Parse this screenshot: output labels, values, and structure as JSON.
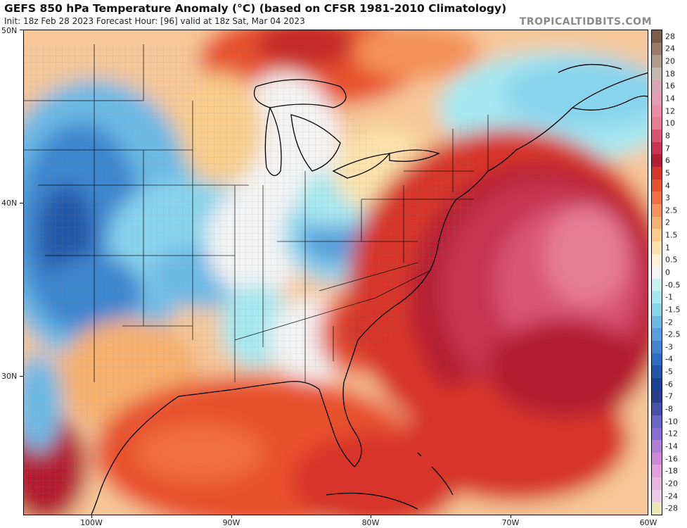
{
  "header": {
    "title": "GEFS 850 hPa Temperature Anomaly (°C) (based on CFSR 1981-2010 Climatology)",
    "subtitle": "Init: 18z Feb 28 2023   Forecast Hour: [96]   valid at 18z Sat, Mar 04 2023",
    "brand": "TROPICALTIDBITS.COM"
  },
  "axes": {
    "lat_labels": [
      "50N",
      "40N",
      "30N"
    ],
    "lon_labels": [
      "100W",
      "90W",
      "80W",
      "70W",
      "60W"
    ]
  },
  "colorbar": {
    "labels": [
      "28",
      "24",
      "20",
      "18",
      "16",
      "14",
      "12",
      "10",
      "8",
      "7",
      "6",
      "5",
      "4",
      "3",
      "2.5",
      "2",
      "1.5",
      "1",
      "0.5",
      "0",
      "-0.5",
      "-1",
      "-1.5",
      "-2",
      "-2.5",
      "-3",
      "-4",
      "-5",
      "-6",
      "-7",
      "-8",
      "-10",
      "-12",
      "-14",
      "-16",
      "-18",
      "-20",
      "-24",
      "-28"
    ],
    "colors": [
      "#7b5c4a",
      "#9a7b6a",
      "#b09a8c",
      "#c4b8b0",
      "#d6a6b4",
      "#e49cb2",
      "#ec8da8",
      "#e67d96",
      "#d95474",
      "#c53450",
      "#b31f32",
      "#d7362a",
      "#e8512e",
      "#ef7040",
      "#f4935a",
      "#f6b070",
      "#f9cd8c",
      "#fbe3ae",
      "#fdf2d4",
      "#f4f4f4",
      "#c8f2f2",
      "#a6e8f0",
      "#88d4ee",
      "#6cbae6",
      "#549fdc",
      "#3e86d0",
      "#2d6cc0",
      "#2356a8",
      "#1a4290",
      "#2a3e8a",
      "#4552a6",
      "#6a66c2",
      "#8b6fd0",
      "#b07ed6",
      "#cf87d6",
      "#e0a0dc",
      "#e8b6e0",
      "#efcae6",
      "#ede8b8"
    ]
  },
  "map": {
    "anomaly_range_c": [
      -4,
      7
    ],
    "features": [
      "Great Lakes",
      "Florida",
      "Gulf of Mexico",
      "Atlantic Ocean"
    ]
  }
}
